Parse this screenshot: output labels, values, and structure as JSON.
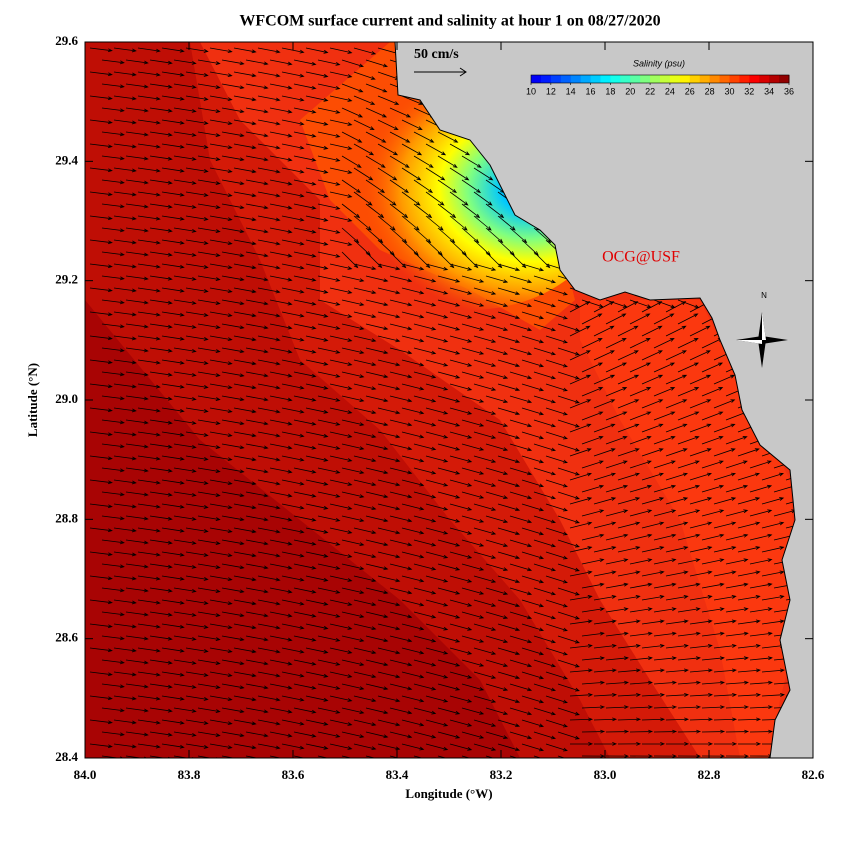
{
  "title": "WFCOM surface current and salinity at hour 1 on 08/27/2020",
  "x_axis": {
    "label": "Longitude (°W)",
    "lim": [
      84,
      82.6
    ],
    "ticks": [
      {
        "value": 84,
        "label": "84.0"
      },
      83.8,
      83.6,
      83.4,
      83.2,
      {
        "value": 83,
        "label": "83.0"
      },
      82.8,
      82.6
    ]
  },
  "y_axis": {
    "label": "Latitude (°N)",
    "lim": [
      28.4,
      29.6
    ],
    "ticks": [
      28.4,
      28.6,
      28.8,
      {
        "value": 29,
        "label": "29.0"
      },
      29.2,
      29.4,
      29.6
    ]
  },
  "colorbar": {
    "title": "Salinity (psu)",
    "lim": [
      10,
      36
    ],
    "ticks": [
      10,
      12,
      14,
      16,
      18,
      20,
      22,
      24,
      26,
      28,
      30,
      32,
      34,
      36
    ]
  },
  "scale_label": "50 cm/s",
  "credit": "OCG@USF",
  "compass_label": "N"
}
